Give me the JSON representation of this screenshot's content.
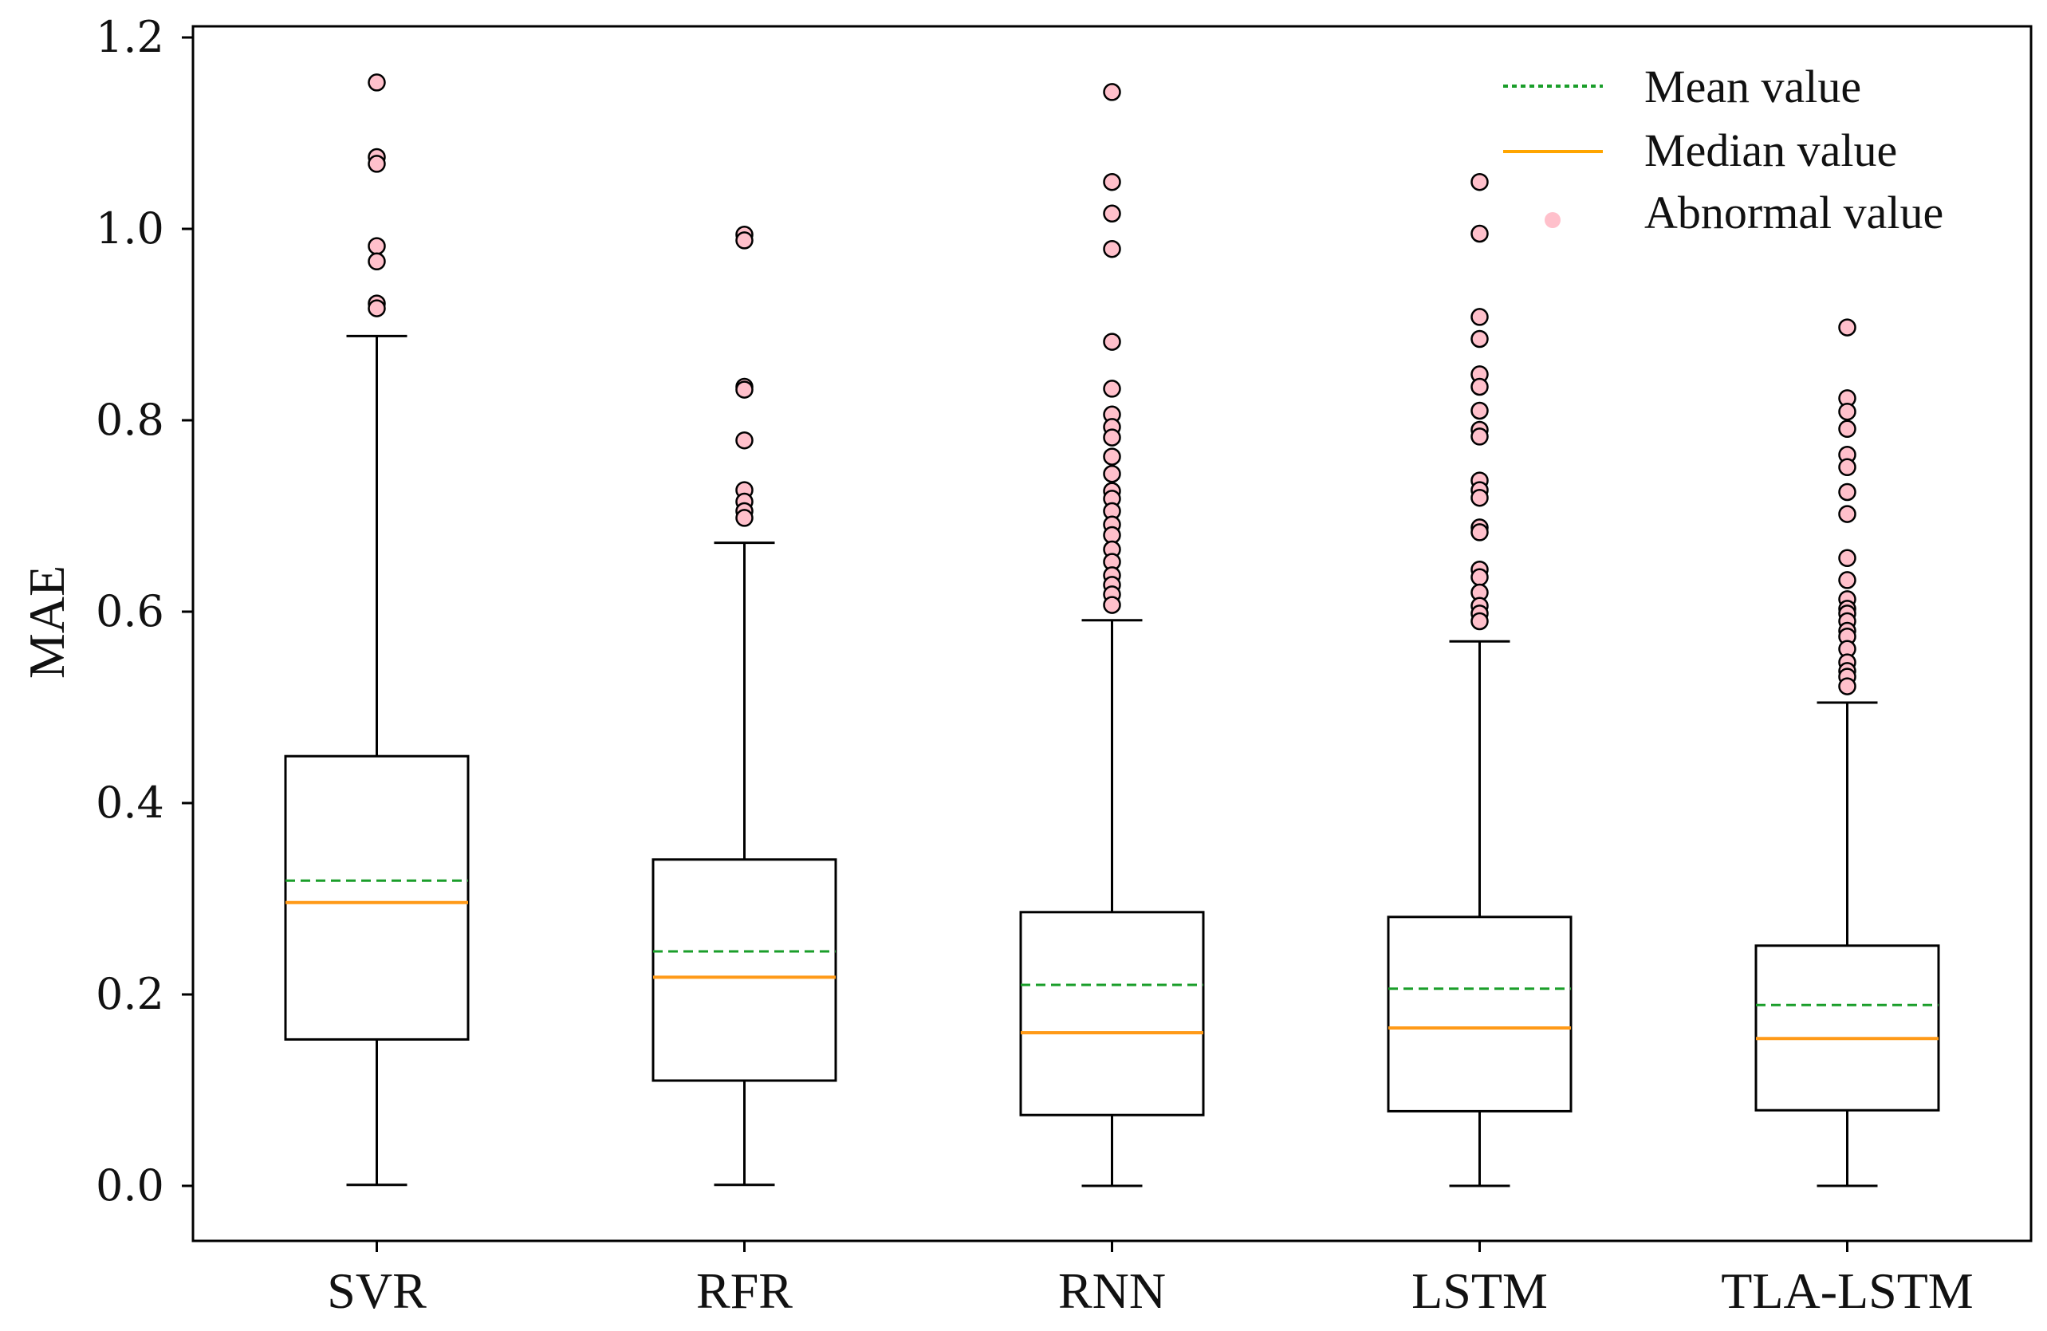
{
  "chart_data": {
    "type": "boxplot",
    "title": "",
    "xlabel": "",
    "ylabel": "MAE",
    "ylim": [
      -0.06,
      1.215
    ],
    "yticks": [
      0.0,
      0.2,
      0.4,
      0.6,
      0.8,
      1.0,
      1.2
    ],
    "ytick_labels": [
      "0.0",
      "0.2",
      "0.4",
      "0.6",
      "0.8",
      "1.0",
      "1.2"
    ],
    "categories": [
      "SVR",
      "RFR",
      "RNN",
      "LSTM",
      "TLA-LSTM"
    ],
    "boxes": [
      {
        "name": "SVR",
        "whisker_low": 0.001,
        "q1": 0.153,
        "median": 0.296,
        "mean": 0.319,
        "q3": 0.449,
        "whisker_high": 0.888,
        "outliers": [
          1.153,
          1.075,
          1.068,
          0.982,
          0.966,
          0.922,
          0.917
        ]
      },
      {
        "name": "RFR",
        "whisker_low": 0.001,
        "q1": 0.11,
        "median": 0.218,
        "mean": 0.245,
        "q3": 0.341,
        "whisker_high": 0.672,
        "outliers": [
          0.994,
          0.988,
          0.835,
          0.832,
          0.779,
          0.727,
          0.715,
          0.705,
          0.698
        ]
      },
      {
        "name": "RNN",
        "whisker_low": 0.0,
        "q1": 0.074,
        "median": 0.16,
        "mean": 0.21,
        "q3": 0.286,
        "whisker_high": 0.591,
        "outliers": [
          1.143,
          1.049,
          1.016,
          0.979,
          0.882,
          0.833,
          0.806,
          0.793,
          0.782,
          0.762,
          0.744,
          0.726,
          0.718,
          0.705,
          0.691,
          0.68,
          0.665,
          0.652,
          0.638,
          0.628,
          0.618,
          0.607
        ]
      },
      {
        "name": "LSTM",
        "whisker_low": 0.0,
        "q1": 0.078,
        "median": 0.165,
        "mean": 0.206,
        "q3": 0.281,
        "whisker_high": 0.569,
        "outliers": [
          1.049,
          0.995,
          0.908,
          0.885,
          0.848,
          0.835,
          0.81,
          0.79,
          0.783,
          0.737,
          0.727,
          0.719,
          0.688,
          0.683,
          0.644,
          0.636,
          0.62,
          0.606,
          0.598,
          0.59
        ]
      },
      {
        "name": "TLA-LSTM",
        "whisker_low": 0.0,
        "q1": 0.079,
        "median": 0.154,
        "mean": 0.189,
        "q3": 0.251,
        "whisker_high": 0.505,
        "outliers": [
          0.897,
          0.823,
          0.809,
          0.791,
          0.764,
          0.751,
          0.725,
          0.702,
          0.656,
          0.633,
          0.613,
          0.603,
          0.598,
          0.59,
          0.58,
          0.574,
          0.561,
          0.547,
          0.538,
          0.532,
          0.522
        ]
      }
    ],
    "legend": {
      "position": "top-right",
      "entries": [
        {
          "label": "Mean value",
          "style": "dotted-line",
          "color": "#1a9e2a"
        },
        {
          "label": "Median value",
          "style": "line",
          "color": "#ffa500"
        },
        {
          "label": "Abnormal value",
          "style": "dot",
          "color": "#ffc0cb"
        }
      ]
    },
    "colors": {
      "box": "#000000",
      "mean": "#1a9e2a",
      "median": "#ff9a18",
      "outlier_fill": "#ffc0cb",
      "outlier_edge": "#000000"
    }
  }
}
